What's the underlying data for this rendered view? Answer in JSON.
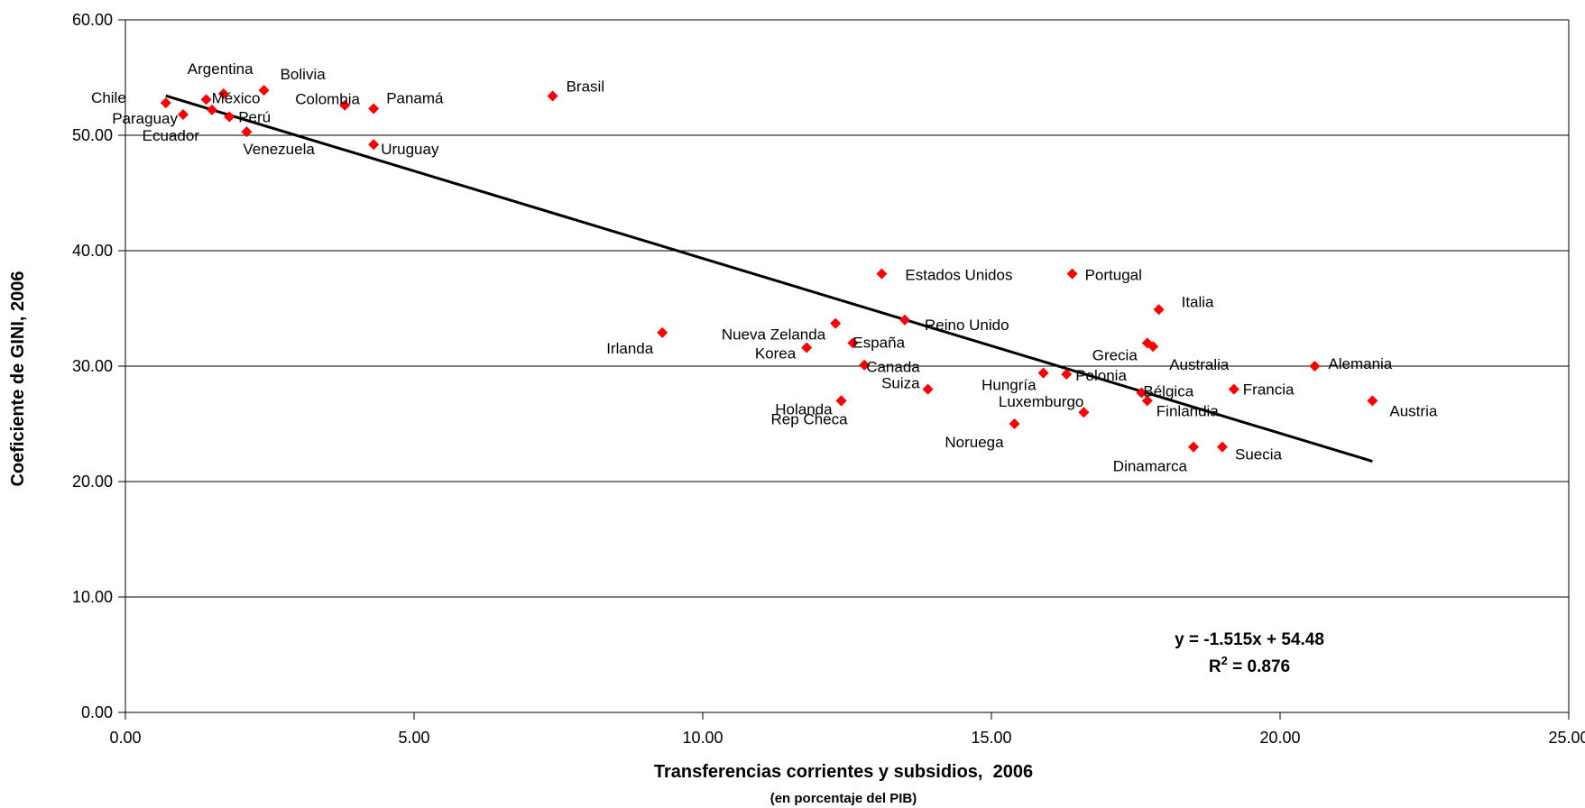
{
  "chart_data": {
    "type": "scatter",
    "xlabel": "Transferencias corrientes y subsidios,  2006",
    "xlabel_sub": "(en porcentaje del PIB)",
    "ylabel": "Coeficiente de GINI, 2006",
    "xlim": [
      0,
      25
    ],
    "ylim": [
      0,
      60
    ],
    "x_ticks": [
      "0.00",
      "5.00",
      "10.00",
      "15.00",
      "20.00",
      "25.00"
    ],
    "y_ticks": [
      "0.00",
      "10.00",
      "20.00",
      "30.00",
      "40.00",
      "50.00",
      "60.00"
    ],
    "grid": "horizontal",
    "marker_color": "#ff0000",
    "trend_color": "#000000",
    "trendline": {
      "slope": -1.515,
      "intercept": 54.48,
      "x_range": [
        0.7,
        21.6
      ]
    },
    "equation": "y = -1.515x + 54.48",
    "r2_label": "R",
    "r2_exp": "2",
    "r2_value": " = 0.876",
    "points": [
      {
        "label": "Argentina",
        "x": 1.7,
        "y": 53.6
      },
      {
        "label": "Bolivia",
        "x": 2.4,
        "y": 53.9
      },
      {
        "label": "Chile",
        "x": 0.7,
        "y": 52.8
      },
      {
        "label": "México",
        "x": 1.4,
        "y": 53.1
      },
      {
        "label": "Paraguay",
        "x": 1.0,
        "y": 51.8
      },
      {
        "label": "Perú",
        "x": 1.8,
        "y": 51.6
      },
      {
        "label": "Ecuador",
        "x": 1.5,
        "y": 52.2
      },
      {
        "label": "Venezuela",
        "x": 2.1,
        "y": 50.3
      },
      {
        "label": "Colombia",
        "x": 3.8,
        "y": 52.6
      },
      {
        "label": "Panamá",
        "x": 4.3,
        "y": 52.3
      },
      {
        "label": "Uruguay",
        "x": 4.3,
        "y": 49.2
      },
      {
        "label": "Brasil",
        "x": 7.4,
        "y": 53.4
      },
      {
        "label": "Estados Unidos",
        "x": 13.1,
        "y": 38.0
      },
      {
        "label": "Portugal",
        "x": 16.4,
        "y": 38.0
      },
      {
        "label": "Italia",
        "x": 17.9,
        "y": 34.9
      },
      {
        "label": "Irlanda",
        "x": 9.3,
        "y": 32.9
      },
      {
        "label": "Nueva Zelanda",
        "x": 12.3,
        "y": 33.7
      },
      {
        "label": "España",
        "x": 12.6,
        "y": 32.0
      },
      {
        "label": "Reino Unido",
        "x": 13.5,
        "y": 34.0
      },
      {
        "label": "Korea",
        "x": 11.8,
        "y": 31.6
      },
      {
        "label": "Canada",
        "x": 12.8,
        "y": 30.1
      },
      {
        "label": "Grecia",
        "x": 17.7,
        "y": 32.0
      },
      {
        "label": "Australia",
        "x": 17.8,
        "y": 31.7
      },
      {
        "label": "Alemania",
        "x": 20.6,
        "y": 30.0
      },
      {
        "label": "Suiza",
        "x": 13.9,
        "y": 28.0
      },
      {
        "label": "Hungría",
        "x": 15.9,
        "y": 29.4
      },
      {
        "label": "Polonia",
        "x": 16.3,
        "y": 29.3
      },
      {
        "label": "Bélgica",
        "x": 17.6,
        "y": 27.7
      },
      {
        "label": "Francia",
        "x": 19.2,
        "y": 28.0
      },
      {
        "label": "Holanda",
        "x": 12.4,
        "y": 27.0
      },
      {
        "label": "Rep Checa",
        "x": 12.4,
        "y": 27.0
      },
      {
        "label": "Luxemburgo",
        "x": 16.6,
        "y": 26.0
      },
      {
        "label": "Finlandia",
        "x": 17.7,
        "y": 27.0
      },
      {
        "label": "Austria",
        "x": 21.6,
        "y": 27.0
      },
      {
        "label": "Noruega",
        "x": 15.4,
        "y": 25.0
      },
      {
        "label": "Dinamarca",
        "x": 18.5,
        "y": 23.0
      },
      {
        "label": "Suecia",
        "x": 19.0,
        "y": 23.0
      }
    ]
  }
}
